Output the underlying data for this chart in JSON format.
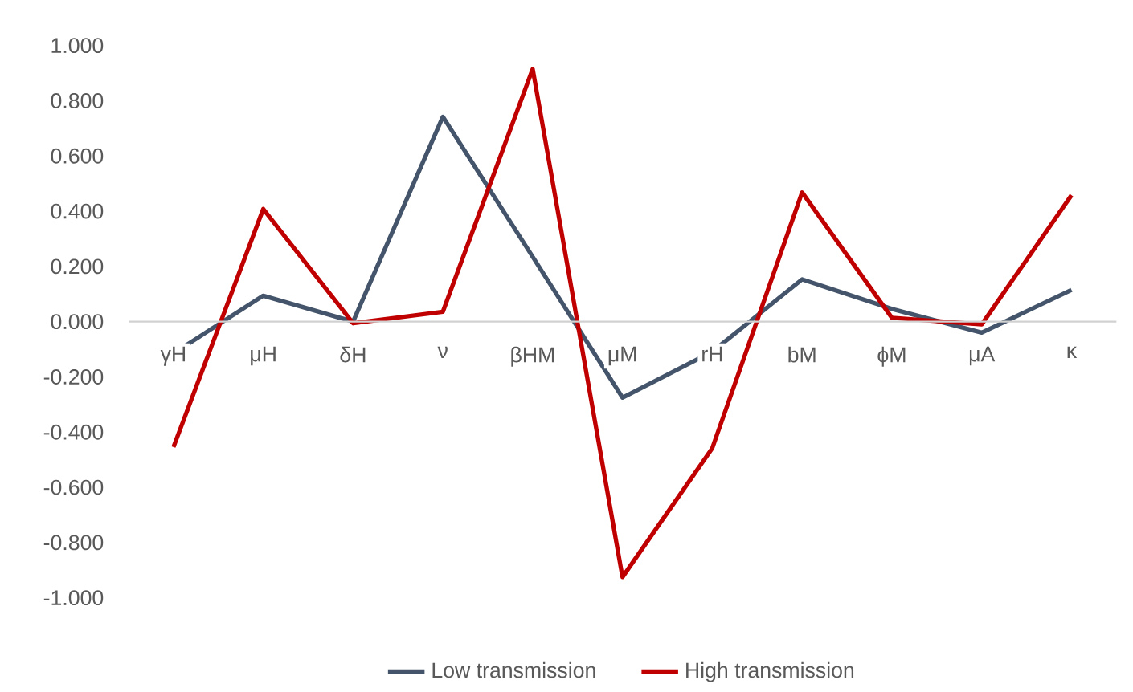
{
  "chart_data": {
    "type": "line",
    "categories": [
      "γH",
      "μH",
      "δH",
      "ν",
      "βHM",
      "μM",
      "rH",
      "bM",
      "ϕM",
      "μA",
      "κ"
    ],
    "series": [
      {
        "name": "Low transmission",
        "color": "#44546a",
        "values": [
          -0.115,
          0.094,
          0.0,
          0.742,
          0.235,
          -0.275,
          -0.109,
          0.153,
          0.046,
          -0.04,
          0.115
        ]
      },
      {
        "name": "High transmission",
        "color": "#c00000",
        "values": [
          -0.454,
          0.408,
          -0.006,
          0.036,
          0.915,
          -0.925,
          -0.458,
          0.468,
          0.014,
          -0.01,
          0.458
        ]
      }
    ],
    "ylim": [
      -1,
      1
    ],
    "yticks": [
      {
        "value": -1,
        "label": "-1.000"
      },
      {
        "value": -0.8,
        "label": "-0.800"
      },
      {
        "value": -0.6,
        "label": "-0.600"
      },
      {
        "value": -0.4,
        "label": "-0.400"
      },
      {
        "value": -0.2,
        "label": "-0.200"
      },
      {
        "value": 0,
        "label": "0.000"
      },
      {
        "value": 0.2,
        "label": "0.200"
      },
      {
        "value": 0.4,
        "label": "0.400"
      },
      {
        "value": 0.6,
        "label": "0.600"
      },
      {
        "value": 0.8,
        "label": "0.800"
      },
      {
        "value": 1,
        "label": "1.000"
      }
    ],
    "legend": "bottom",
    "marker": "none",
    "line_style": "solid"
  }
}
